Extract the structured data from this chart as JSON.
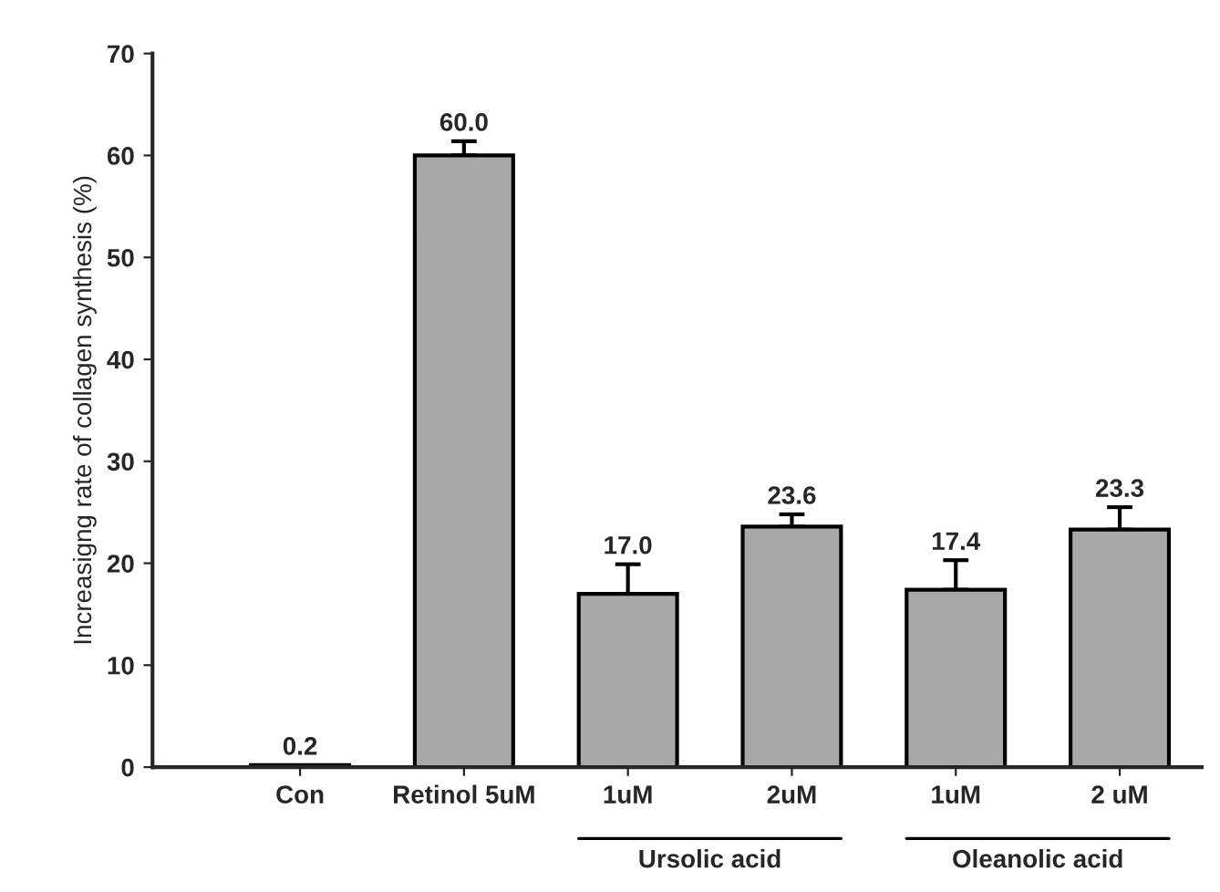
{
  "chart_data": {
    "type": "bar",
    "ylabel": "Increasigng rate of collagen synthesis (%)",
    "categories": [
      "Con",
      "Retinol 5uM",
      "1uM",
      "2uM",
      "1uM",
      "2 uM"
    ],
    "values": [
      0.2,
      60.0,
      17.0,
      23.6,
      17.4,
      23.3
    ],
    "errors": [
      null,
      1.4,
      2.9,
      1.2,
      2.9,
      2.2
    ],
    "color": "#a8a8a8",
    "value_labels": [
      "0.2",
      "60.0",
      "17.0",
      "23.6",
      "17.4",
      "23.3"
    ],
    "ylim": [
      0,
      70
    ],
    "yticks": [
      0,
      10,
      20,
      30,
      40,
      50,
      60,
      70
    ],
    "grid": false,
    "annotations": [
      "Ursolic acid",
      "Oleanolic acid"
    ]
  }
}
